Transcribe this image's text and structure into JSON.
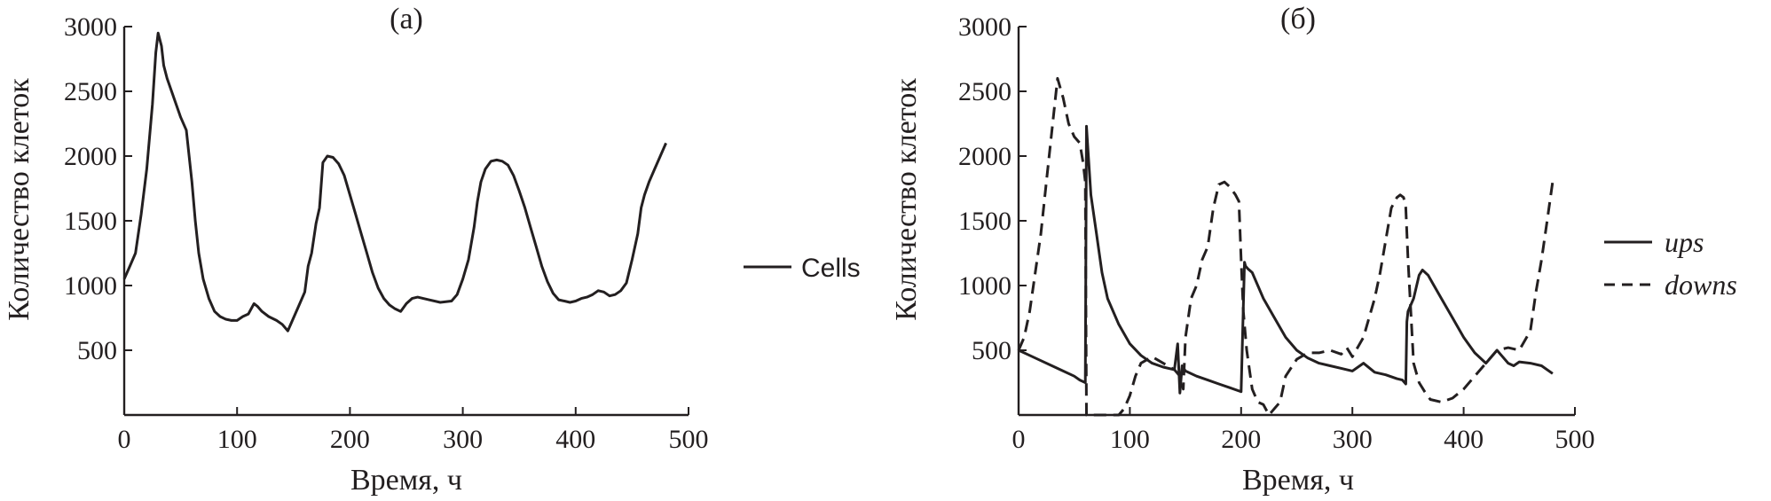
{
  "chart_data": [
    {
      "type": "line",
      "title": "(а)",
      "xlabel": "Время, ч",
      "ylabel": "Количество клеток",
      "xlim": [
        0,
        500
      ],
      "ylim": [
        0,
        3000
      ],
      "xticks": [
        "0",
        "100",
        "200",
        "300",
        "400",
        "500"
      ],
      "yticks": [
        "500",
        "1000",
        "1500",
        "2000",
        "2500",
        "3000"
      ],
      "grid": false,
      "legend_position": "right",
      "series": [
        {
          "name": "Cells",
          "style": "solid",
          "x": [
            0,
            5,
            10,
            15,
            20,
            25,
            28,
            30,
            33,
            35,
            38,
            42,
            46,
            50,
            55,
            60,
            63,
            66,
            70,
            75,
            80,
            85,
            90,
            95,
            100,
            105,
            110,
            115,
            118,
            122,
            128,
            135,
            140,
            145,
            150,
            155,
            160,
            163,
            166,
            170,
            173,
            176,
            180,
            185,
            190,
            195,
            200,
            205,
            210,
            215,
            220,
            225,
            230,
            235,
            240,
            245,
            250,
            255,
            260,
            270,
            280,
            290,
            295,
            300,
            305,
            310,
            313,
            316,
            320,
            325,
            330,
            335,
            340,
            345,
            350,
            355,
            360,
            365,
            370,
            375,
            380,
            385,
            390,
            395,
            400,
            405,
            410,
            415,
            420,
            425,
            430,
            435,
            440,
            445,
            450,
            455,
            458,
            461,
            465,
            470,
            475,
            480
          ],
          "y": [
            1050,
            1150,
            1250,
            1550,
            1900,
            2400,
            2800,
            2950,
            2850,
            2700,
            2600,
            2500,
            2400,
            2300,
            2200,
            1800,
            1500,
            1250,
            1050,
            900,
            800,
            760,
            740,
            730,
            730,
            760,
            780,
            860,
            840,
            800,
            760,
            730,
            700,
            650,
            750,
            850,
            950,
            1150,
            1250,
            1480,
            1600,
            1950,
            2000,
            1990,
            1940,
            1850,
            1700,
            1550,
            1400,
            1250,
            1100,
            980,
            900,
            850,
            820,
            800,
            860,
            900,
            910,
            890,
            870,
            880,
            930,
            1050,
            1200,
            1450,
            1650,
            1800,
            1900,
            1960,
            1970,
            1960,
            1930,
            1850,
            1730,
            1600,
            1450,
            1300,
            1150,
            1030,
            940,
            890,
            880,
            870,
            880,
            900,
            910,
            930,
            960,
            950,
            920,
            930,
            960,
            1020,
            1200,
            1400,
            1600,
            1700,
            1800,
            1900,
            2000,
            2100
          ]
        }
      ]
    },
    {
      "type": "line",
      "title": "(б)",
      "xlabel": "Время, ч",
      "ylabel": "Количество клеток",
      "xlim": [
        0,
        500
      ],
      "ylim": [
        0,
        3000
      ],
      "xticks": [
        "0",
        "100",
        "200",
        "300",
        "400",
        "500"
      ],
      "yticks": [
        "500",
        "1000",
        "1500",
        "2000",
        "2500",
        "3000"
      ],
      "grid": false,
      "legend_position": "right",
      "series": [
        {
          "name": "ups",
          "style": "solid",
          "x": [
            0,
            10,
            20,
            30,
            40,
            50,
            55,
            60,
            61,
            62,
            65,
            70,
            75,
            80,
            90,
            100,
            110,
            120,
            130,
            140,
            143,
            145,
            147,
            150,
            160,
            170,
            180,
            190,
            200,
            203,
            204,
            206,
            210,
            215,
            220,
            230,
            240,
            250,
            260,
            270,
            280,
            290,
            300,
            310,
            320,
            330,
            340,
            345,
            348,
            349,
            350,
            355,
            360,
            363,
            368,
            372,
            380,
            390,
            400,
            410,
            420,
            430,
            435,
            440,
            445,
            450,
            460,
            470,
            480
          ],
          "y": [
            500,
            460,
            420,
            380,
            340,
            300,
            270,
            250,
            2230,
            2100,
            1700,
            1400,
            1100,
            900,
            700,
            550,
            460,
            400,
            370,
            350,
            550,
            170,
            380,
            340,
            300,
            270,
            240,
            210,
            180,
            1180,
            1150,
            1130,
            1100,
            1000,
            900,
            750,
            600,
            500,
            440,
            400,
            380,
            360,
            340,
            400,
            330,
            310,
            280,
            270,
            240,
            720,
            800,
            900,
            1080,
            1120,
            1080,
            1020,
            900,
            750,
            600,
            480,
            400,
            500,
            450,
            400,
            380,
            410,
            400,
            380,
            320
          ]
        },
        {
          "name": "downs",
          "style": "dashed",
          "x": [
            0,
            5,
            10,
            15,
            20,
            25,
            30,
            35,
            40,
            45,
            50,
            55,
            58,
            60,
            61,
            62,
            70,
            80,
            90,
            95,
            100,
            105,
            110,
            120,
            130,
            140,
            145,
            148,
            150,
            155,
            160,
            165,
            170,
            175,
            180,
            185,
            190,
            195,
            198,
            200,
            202,
            205,
            210,
            215,
            220,
            225,
            230,
            235,
            240,
            250,
            260,
            270,
            280,
            290,
            295,
            300,
            310,
            320,
            325,
            330,
            335,
            340,
            343,
            346,
            348,
            350,
            355,
            360,
            365,
            370,
            380,
            390,
            400,
            410,
            420,
            430,
            440,
            450,
            460,
            465,
            470,
            475,
            480
          ],
          "y": [
            500,
            600,
            800,
            1100,
            1400,
            1800,
            2200,
            2600,
            2450,
            2250,
            2150,
            2100,
            1950,
            1800,
            0,
            0,
            0,
            0,
            0,
            50,
            150,
            300,
            400,
            450,
            400,
            350,
            300,
            200,
            600,
            900,
            1000,
            1200,
            1300,
            1600,
            1780,
            1800,
            1760,
            1700,
            1650,
            1200,
            800,
            500,
            200,
            100,
            80,
            0,
            50,
            100,
            300,
            430,
            480,
            480,
            500,
            470,
            520,
            450,
            600,
            900,
            1100,
            1350,
            1600,
            1680,
            1700,
            1680,
            1600,
            1200,
            400,
            250,
            180,
            120,
            100,
            130,
            200,
            300,
            400,
            500,
            520,
            500,
            650,
            950,
            1200,
            1500,
            1800
          ]
        }
      ]
    }
  ]
}
